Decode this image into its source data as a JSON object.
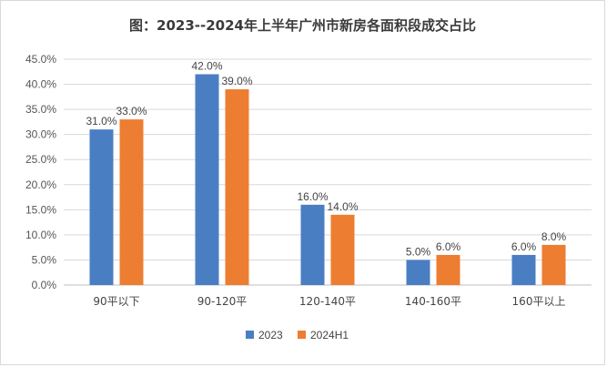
{
  "chart_data": {
    "type": "bar",
    "title": "图：2023--2024年上半年广州市新房各面积段成交占比",
    "categories": [
      "90平以下",
      "90-120平",
      "120-140平",
      "140-160平",
      "160平以上"
    ],
    "series": [
      {
        "name": "2023",
        "values": [
          31.0,
          42.0,
          16.0,
          5.0,
          6.0
        ],
        "labels": [
          "31.0%",
          "42.0%",
          "16.0%",
          "5.0%",
          "6.0%"
        ],
        "color": "#4a7ec3"
      },
      {
        "name": "2024H1",
        "values": [
          33.0,
          39.0,
          14.0,
          6.0,
          8.0
        ],
        "labels": [
          "33.0%",
          "39.0%",
          "14.0%",
          "6.0%",
          "8.0%"
        ],
        "color": "#ed7d31"
      }
    ],
    "ylim": [
      0,
      45
    ],
    "yticks": [
      "0.0%",
      "5.0%",
      "10.0%",
      "15.0%",
      "20.0%",
      "25.0%",
      "30.0%",
      "35.0%",
      "40.0%",
      "45.0%"
    ],
    "grid": true,
    "legend_position": "bottom"
  }
}
